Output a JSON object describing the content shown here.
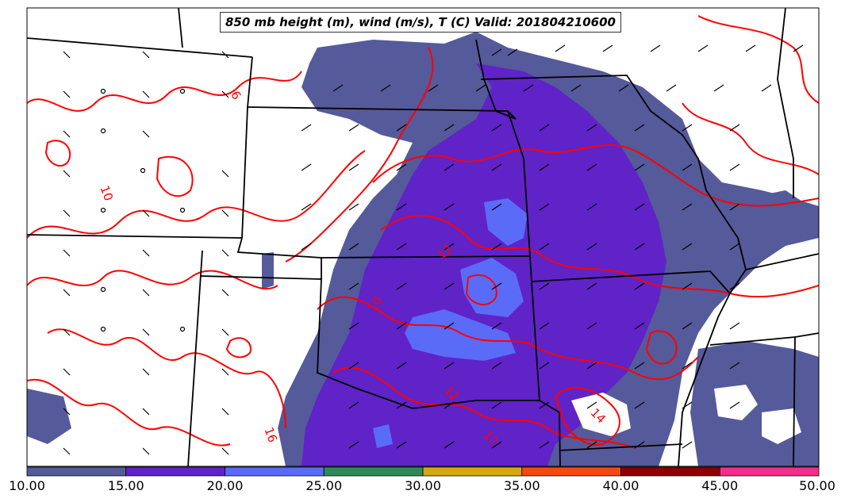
{
  "title": "850 mb height (m), wind (m/s), T (C) Valid: 201804210600",
  "colorbar": {
    "ticks": [
      "10.00",
      "15.00",
      "20.00",
      "25.00",
      "30.00",
      "35.00",
      "40.00",
      "45.00",
      "50.00"
    ],
    "bins": [
      {
        "from": 10,
        "to": 15,
        "color": "#555a9a"
      },
      {
        "from": 15,
        "to": 20,
        "color": "#5f23c7"
      },
      {
        "from": 20,
        "to": 25,
        "color": "#5a6bf7"
      },
      {
        "from": 25,
        "to": 30,
        "color": "#2e8b57"
      },
      {
        "from": 30,
        "to": 35,
        "color": "#d4a90f"
      },
      {
        "from": 35,
        "to": 40,
        "color": "#f24a10"
      },
      {
        "from": 40,
        "to": 45,
        "color": "#8b0000"
      },
      {
        "from": 45,
        "to": 50,
        "color": "#f0308c"
      }
    ]
  },
  "contour_labels": [
    "6",
    "10",
    "10",
    "12",
    "12",
    "12",
    "14",
    "16"
  ],
  "colors": {
    "temperature_contour": "#ff0000",
    "state_border": "#000000",
    "wind_barb": "#000000"
  }
}
